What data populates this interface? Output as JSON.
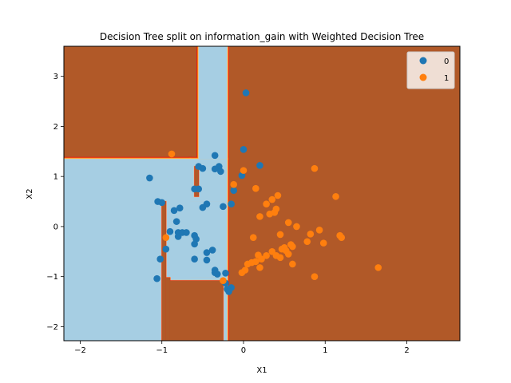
{
  "chart_data": {
    "type": "scatter",
    "title": "Decision Tree split on information_gain with Weighted Decision Tree",
    "xlabel": "X1",
    "ylabel": "X2",
    "xlim": [
      -2.2,
      2.65
    ],
    "ylim": [
      -2.28,
      3.6
    ],
    "x_ticks": [
      -2,
      -1,
      0,
      1,
      2
    ],
    "y_ticks": [
      -2,
      -1,
      0,
      1,
      2,
      3
    ],
    "grid": false,
    "legend_position": "top-right",
    "background_class": "1",
    "colors": {
      "class0_point": "#1f77b4",
      "class1_point": "#ff7f0e",
      "region0": "#a6cee3",
      "region1": "#b15928",
      "boundary_1": "#fdbf6f",
      "boundary_2": "#ff7f00",
      "boundary_3": "#e31a1c"
    },
    "decision_regions_class0": [
      {
        "x": [
          -2.2,
          -0.65
        ],
        "y": [
          -2.28,
          1.35
        ]
      },
      {
        "x": [
          -0.65,
          -0.2
        ],
        "y": [
          -2.28,
          -1.08
        ]
      },
      {
        "x": [
          -0.9,
          -0.2
        ],
        "y": [
          -1.08,
          -1.02
        ]
      },
      {
        "x": [
          -0.95,
          -0.2
        ],
        "y": [
          -1.02,
          0.5
        ]
      },
      {
        "x": [
          -0.65,
          -0.2
        ],
        "y": [
          0.5,
          1.35
        ]
      },
      {
        "x": [
          -0.55,
          -0.2
        ],
        "y": [
          1.35,
          3.6
        ]
      }
    ],
    "decision_regions_class1": [
      {
        "x": [
          -1.0,
          -0.95
        ],
        "y": [
          -2.28,
          0.5
        ]
      },
      {
        "x": [
          -0.95,
          -0.9
        ],
        "y": [
          -2.28,
          -1.02
        ]
      },
      {
        "x": [
          -0.9,
          -0.25
        ],
        "y": [
          -2.28,
          -1.08
        ]
      },
      {
        "x": [
          -0.6,
          -0.55
        ],
        "y": [
          0.6,
          1.2
        ]
      }
    ],
    "series": [
      {
        "name": "0",
        "points": [
          [
            0.03,
            2.67
          ],
          [
            0.0,
            1.54
          ],
          [
            0.2,
            1.22
          ],
          [
            -0.35,
            1.42
          ],
          [
            -0.55,
            1.2
          ],
          [
            -0.3,
            1.2
          ],
          [
            -0.5,
            1.16
          ],
          [
            -0.35,
            1.15
          ],
          [
            -0.28,
            1.1
          ],
          [
            -0.02,
            1.02
          ],
          [
            -1.15,
            0.97
          ],
          [
            -0.55,
            0.75
          ],
          [
            -0.6,
            0.75
          ],
          [
            -0.12,
            0.72
          ],
          [
            -0.45,
            0.45
          ],
          [
            -0.15,
            0.45
          ],
          [
            -0.25,
            0.4
          ],
          [
            -0.5,
            0.38
          ],
          [
            -1.05,
            0.5
          ],
          [
            -1.0,
            0.48
          ],
          [
            -0.78,
            0.37
          ],
          [
            -0.85,
            0.32
          ],
          [
            -0.82,
            0.1
          ],
          [
            -0.9,
            -0.1
          ],
          [
            -0.8,
            -0.12
          ],
          [
            -0.75,
            -0.12
          ],
          [
            -0.8,
            -0.2
          ],
          [
            -0.7,
            -0.12
          ],
          [
            -0.6,
            -0.18
          ],
          [
            -0.58,
            -0.25
          ],
          [
            -0.6,
            -0.35
          ],
          [
            -0.95,
            -0.45
          ],
          [
            -0.38,
            -0.47
          ],
          [
            -0.45,
            -0.52
          ],
          [
            -1.02,
            -0.65
          ],
          [
            -0.6,
            -0.65
          ],
          [
            -0.45,
            -0.67
          ],
          [
            -0.35,
            -0.87
          ],
          [
            -0.35,
            -0.92
          ],
          [
            -0.32,
            -0.95
          ],
          [
            -0.22,
            -0.93
          ],
          [
            -1.06,
            -1.04
          ],
          [
            -0.22,
            -1.13
          ],
          [
            -0.15,
            -1.22
          ],
          [
            -0.2,
            -1.25
          ],
          [
            -0.18,
            -1.3
          ]
        ]
      },
      {
        "name": "1",
        "points": [
          [
            -0.88,
            1.45
          ],
          [
            0.0,
            1.12
          ],
          [
            0.87,
            1.16
          ],
          [
            -0.12,
            0.84
          ],
          [
            0.15,
            0.76
          ],
          [
            1.13,
            0.6
          ],
          [
            0.42,
            0.62
          ],
          [
            0.35,
            0.54
          ],
          [
            0.28,
            0.45
          ],
          [
            0.4,
            0.35
          ],
          [
            0.2,
            0.2
          ],
          [
            0.32,
            0.25
          ],
          [
            0.38,
            0.28
          ],
          [
            0.55,
            0.08
          ],
          [
            0.65,
            0.0
          ],
          [
            0.93,
            -0.07
          ],
          [
            0.82,
            -0.15
          ],
          [
            0.45,
            -0.16
          ],
          [
            1.18,
            -0.18
          ],
          [
            1.2,
            -0.22
          ],
          [
            0.12,
            -0.22
          ],
          [
            -0.95,
            -0.22
          ],
          [
            0.98,
            -0.33
          ],
          [
            0.78,
            -0.3
          ],
          [
            0.58,
            -0.36
          ],
          [
            0.6,
            -0.4
          ],
          [
            0.5,
            -0.42
          ],
          [
            0.47,
            -0.45
          ],
          [
            0.52,
            -0.48
          ],
          [
            0.35,
            -0.5
          ],
          [
            0.55,
            -0.55
          ],
          [
            0.4,
            -0.58
          ],
          [
            0.28,
            -0.58
          ],
          [
            0.18,
            -0.57
          ],
          [
            0.45,
            -0.62
          ],
          [
            0.22,
            -0.65
          ],
          [
            0.15,
            -0.7
          ],
          [
            0.1,
            -0.72
          ],
          [
            0.05,
            -0.75
          ],
          [
            0.6,
            -0.75
          ],
          [
            1.65,
            -0.82
          ],
          [
            0.2,
            -0.82
          ],
          [
            0.02,
            -0.87
          ],
          [
            -0.02,
            -0.92
          ],
          [
            0.87,
            -1.0
          ],
          [
            -0.25,
            -1.08
          ]
        ]
      }
    ]
  }
}
